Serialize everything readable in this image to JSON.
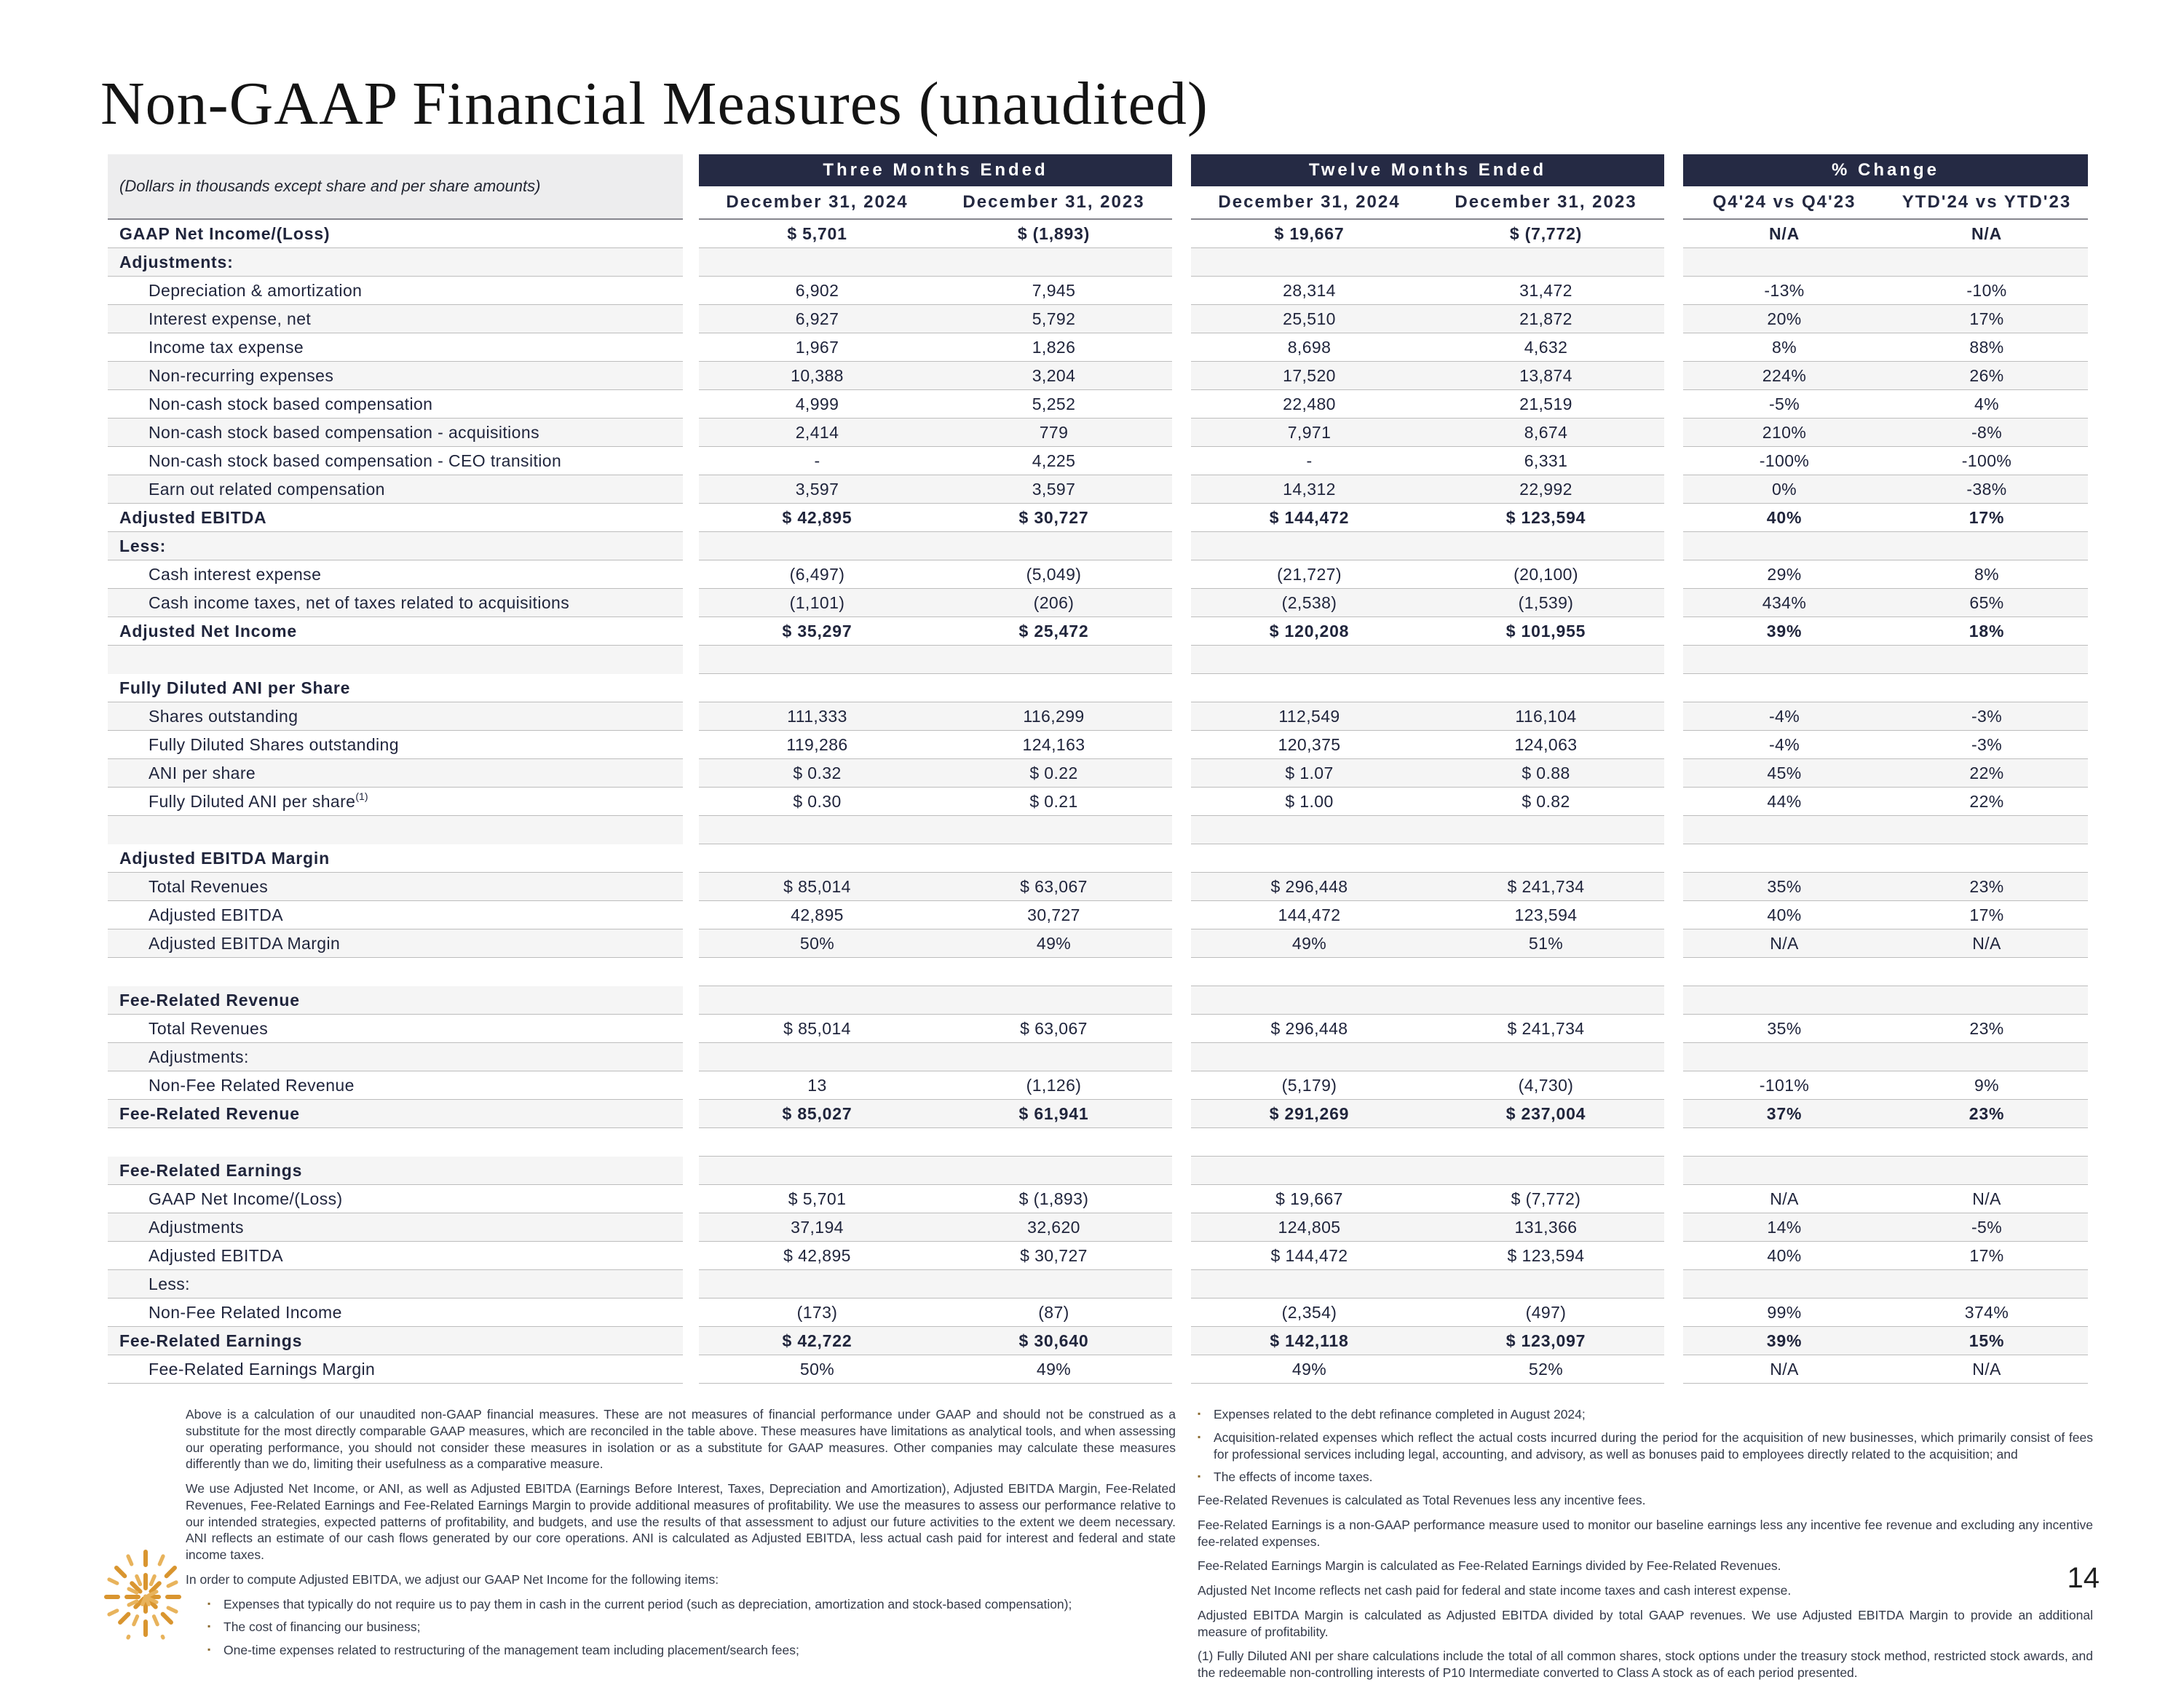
{
  "title": "Non-GAAP Financial Measures (unaudited)",
  "page_number": "14",
  "colors": {
    "header_bar": "#252a44",
    "accent_logo": "#D9952F",
    "rule": "#bdbdbd"
  },
  "table": {
    "subtitle": "(Dollars in thousands except share and per share amounts)",
    "groups": [
      {
        "label": "Three Months Ended",
        "columns": [
          "December 31, 2024",
          "December 31, 2023"
        ]
      },
      {
        "label": "Twelve Months Ended",
        "columns": [
          "December 31, 2024",
          "December 31, 2023"
        ]
      },
      {
        "label": "% Change",
        "columns": [
          "Q4'24 vs Q4'23",
          "YTD'24 vs YTD'23"
        ]
      }
    ],
    "rows": [
      {
        "label": "GAAP Net Income/(Loss)",
        "bold": true,
        "indent": 0,
        "values": [
          "$ 5,701",
          "$ (1,893)",
          "$ 19,667",
          "$ (7,772)",
          "N/A",
          "N/A"
        ]
      },
      {
        "label": "Adjustments:",
        "bold": true,
        "indent": 0,
        "values": [
          "",
          "",
          "",
          "",
          "",
          ""
        ]
      },
      {
        "label": "Depreciation & amortization",
        "indent": 1,
        "values": [
          "6,902",
          "7,945",
          "28,314",
          "31,472",
          "-13%",
          "-10%"
        ]
      },
      {
        "label": "Interest expense, net",
        "indent": 1,
        "values": [
          "6,927",
          "5,792",
          "25,510",
          "21,872",
          "20%",
          "17%"
        ]
      },
      {
        "label": "Income tax expense",
        "indent": 1,
        "values": [
          "1,967",
          "1,826",
          "8,698",
          "4,632",
          "8%",
          "88%"
        ]
      },
      {
        "label": "Non-recurring expenses",
        "indent": 1,
        "values": [
          "10,388",
          "3,204",
          "17,520",
          "13,874",
          "224%",
          "26%"
        ]
      },
      {
        "label": "Non-cash stock based compensation",
        "indent": 1,
        "values": [
          "4,999",
          "5,252",
          "22,480",
          "21,519",
          "-5%",
          "4%"
        ]
      },
      {
        "label": "Non-cash stock based compensation - acquisitions",
        "indent": 1,
        "values": [
          "2,414",
          "779",
          "7,971",
          "8,674",
          "210%",
          "-8%"
        ]
      },
      {
        "label": "Non-cash stock based compensation - CEO transition",
        "indent": 1,
        "values": [
          "-",
          "4,225",
          "-",
          "6,331",
          "-100%",
          "-100%"
        ]
      },
      {
        "label": "Earn out related compensation",
        "indent": 1,
        "values": [
          "3,597",
          "3,597",
          "14,312",
          "22,992",
          "0%",
          "-38%"
        ]
      },
      {
        "label": "Adjusted EBITDA",
        "bold": true,
        "indent": 0,
        "values": [
          "$ 42,895",
          "$ 30,727",
          "$ 144,472",
          "$ 123,594",
          "40%",
          "17%"
        ]
      },
      {
        "label": "Less:",
        "bold": true,
        "indent": 0,
        "values": [
          "",
          "",
          "",
          "",
          "",
          ""
        ]
      },
      {
        "label": "Cash interest expense",
        "indent": 1,
        "values": [
          "(6,497)",
          "(5,049)",
          "(21,727)",
          "(20,100)",
          "29%",
          "8%"
        ]
      },
      {
        "label": "Cash income taxes, net of taxes related to acquisitions",
        "indent": 1,
        "values": [
          "(1,101)",
          "(206)",
          "(2,538)",
          "(1,539)",
          "434%",
          "65%"
        ]
      },
      {
        "label": "Adjusted Net Income",
        "bold": true,
        "indent": 0,
        "values": [
          "$ 35,297",
          "$ 25,472",
          "$ 120,208",
          "$ 101,955",
          "39%",
          "18%"
        ]
      },
      {
        "type": "blank"
      },
      {
        "label": "Fully Diluted ANI per Share",
        "bold": true,
        "indent": 0,
        "values": [
          "",
          "",
          "",
          "",
          "",
          ""
        ]
      },
      {
        "label": "Shares outstanding",
        "indent": 1,
        "values": [
          "111,333",
          "116,299",
          "112,549",
          "116,104",
          "-4%",
          "-3%"
        ]
      },
      {
        "label": "Fully Diluted Shares outstanding",
        "indent": 1,
        "values": [
          "119,286",
          "124,163",
          "120,375",
          "124,063",
          "-4%",
          "-3%"
        ]
      },
      {
        "label": "ANI per share",
        "indent": 1,
        "values": [
          "$ 0.32",
          "$ 0.22",
          "$ 1.07",
          "$ 0.88",
          "45%",
          "22%"
        ]
      },
      {
        "label": "Fully Diluted ANI per share",
        "sup": "(1)",
        "indent": 1,
        "values": [
          "$ 0.30",
          "$ 0.21",
          "$ 1.00",
          "$ 0.82",
          "44%",
          "22%"
        ]
      },
      {
        "type": "blank"
      },
      {
        "label": "Adjusted EBITDA Margin",
        "bold": true,
        "indent": 0,
        "values": [
          "",
          "",
          "",
          "",
          "",
          ""
        ]
      },
      {
        "label": "Total Revenues",
        "indent": 1,
        "values": [
          "$ 85,014",
          "$ 63,067",
          "$ 296,448",
          "$ 241,734",
          "35%",
          "23%"
        ]
      },
      {
        "label": "Adjusted EBITDA",
        "indent": 1,
        "values": [
          "42,895",
          "30,727",
          "144,472",
          "123,594",
          "40%",
          "17%"
        ]
      },
      {
        "label": "Adjusted EBITDA Margin",
        "indent": 1,
        "values": [
          "50%",
          "49%",
          "49%",
          "51%",
          "N/A",
          "N/A"
        ]
      },
      {
        "type": "blank"
      },
      {
        "label": "Fee-Related Revenue",
        "bold": true,
        "indent": 0,
        "values": [
          "",
          "",
          "",
          "",
          "",
          ""
        ]
      },
      {
        "label": "Total Revenues",
        "indent": 1,
        "values": [
          "$ 85,014",
          "$ 63,067",
          "$ 296,448",
          "$ 241,734",
          "35%",
          "23%"
        ]
      },
      {
        "label": "Adjustments:",
        "indent": 1,
        "values": [
          "",
          "",
          "",
          "",
          "",
          ""
        ]
      },
      {
        "label": "Non-Fee Related Revenue",
        "indent": 1,
        "values": [
          "13",
          "(1,126)",
          "(5,179)",
          "(4,730)",
          "-101%",
          "9%"
        ]
      },
      {
        "label": "Fee-Related Revenue",
        "bold": true,
        "indent": 0,
        "values": [
          "$ 85,027",
          "$ 61,941",
          "$ 291,269",
          "$ 237,004",
          "37%",
          "23%"
        ]
      },
      {
        "type": "blank"
      },
      {
        "label": "Fee-Related Earnings",
        "bold": true,
        "indent": 0,
        "values": [
          "",
          "",
          "",
          "",
          "",
          ""
        ]
      },
      {
        "label": "GAAP Net Income/(Loss)",
        "indent": 1,
        "values": [
          "$ 5,701",
          "$ (1,893)",
          "$ 19,667",
          "$ (7,772)",
          "N/A",
          "N/A"
        ]
      },
      {
        "label": "Adjustments",
        "indent": 1,
        "values": [
          "37,194",
          "32,620",
          "124,805",
          "131,366",
          "14%",
          "-5%"
        ]
      },
      {
        "label": "Adjusted EBITDA",
        "indent": 1,
        "values": [
          "$ 42,895",
          "$ 30,727",
          "$ 144,472",
          "$ 123,594",
          "40%",
          "17%"
        ]
      },
      {
        "label": "Less:",
        "indent": 1,
        "values": [
          "",
          "",
          "",
          "",
          "",
          ""
        ]
      },
      {
        "label": "Non-Fee Related Income",
        "indent": 1,
        "values": [
          "(173)",
          "(87)",
          "(2,354)",
          "(497)",
          "99%",
          "374%"
        ]
      },
      {
        "label": "Fee-Related Earnings",
        "bold": true,
        "indent": 0,
        "values": [
          "$ 42,722",
          "$ 30,640",
          "$ 142,118",
          "$ 123,097",
          "39%",
          "15%"
        ]
      },
      {
        "label": "Fee-Related Earnings Margin",
        "indent": 1,
        "values": [
          "50%",
          "49%",
          "49%",
          "52%",
          "N/A",
          "N/A"
        ]
      }
    ]
  },
  "footnotes": {
    "left": [
      {
        "type": "para",
        "text": "Above is a calculation of our unaudited non-GAAP financial measures. These are not measures of financial performance under GAAP and should not be construed as a substitute for the most directly comparable GAAP measures, which are reconciled in the table above. These measures have limitations as analytical tools, and when assessing our operating performance, you should not consider these measures in isolation or as a substitute for GAAP measures. Other companies may calculate these measures differently than we do, limiting their usefulness as a comparative measure."
      },
      {
        "type": "para",
        "text": "We use Adjusted Net Income, or ANI, as well as Adjusted EBITDA (Earnings Before Interest, Taxes, Depreciation and Amortization), Adjusted EBITDA Margin, Fee-Related Revenues, Fee-Related Earnings and Fee-Related Earnings Margin to provide additional measures of profitability. We use the measures to assess our performance relative to our intended strategies, expected patterns of profitability, and budgets, and use the results of that assessment to adjust our future activities to the extent we deem necessary. ANI reflects an estimate of our cash flows generated by our core operations. ANI is calculated as Adjusted EBITDA, less actual cash paid for interest and federal and state income taxes."
      },
      {
        "type": "para",
        "text": "In order to compute Adjusted EBITDA, we adjust our GAAP Net Income for the following items:"
      },
      {
        "type": "bullet",
        "text": "Expenses that typically do not require us to pay them in cash in the current period (such as depreciation, amortization and stock-based compensation);"
      },
      {
        "type": "bullet",
        "text": "The cost of financing our business;"
      },
      {
        "type": "bullet",
        "text": "One-time expenses related to restructuring of the management team including placement/search fees;"
      }
    ],
    "right": [
      {
        "type": "bullet",
        "text": "Expenses related to the debt refinance completed in August 2024;"
      },
      {
        "type": "bullet",
        "text": "Acquisition-related expenses which reflect the actual costs incurred during the period for the acquisition of new businesses, which primarily consist of fees for professional services including legal, accounting, and advisory, as well as bonuses paid to employees directly related to the acquisition; and"
      },
      {
        "type": "bullet",
        "text": "The effects of income taxes."
      },
      {
        "type": "para",
        "text": "Fee-Related Revenues is calculated as Total Revenues less any incentive fees."
      },
      {
        "type": "para",
        "text": "Fee-Related Earnings is a non-GAAP performance measure used to monitor our baseline earnings less any incentive fee revenue and excluding any incentive fee-related expenses."
      },
      {
        "type": "para",
        "text": "Fee-Related Earnings Margin is calculated as Fee-Related Earnings divided by Fee-Related Revenues."
      },
      {
        "type": "para",
        "text": "Adjusted Net Income reflects net cash paid for federal and state income taxes and cash interest expense."
      },
      {
        "type": "para",
        "text": "Adjusted EBITDA Margin is calculated as Adjusted EBITDA divided by total GAAP revenues. We use Adjusted EBITDA Margin to provide an additional measure of profitability."
      },
      {
        "type": "para",
        "text": "(1) Fully Diluted ANI per share calculations include the total of all common shares, stock options under the treasury stock method, restricted stock awards, and the redeemable non-controlling interests of P10 Intermediate converted to Class A stock as of each period presented."
      }
    ]
  }
}
